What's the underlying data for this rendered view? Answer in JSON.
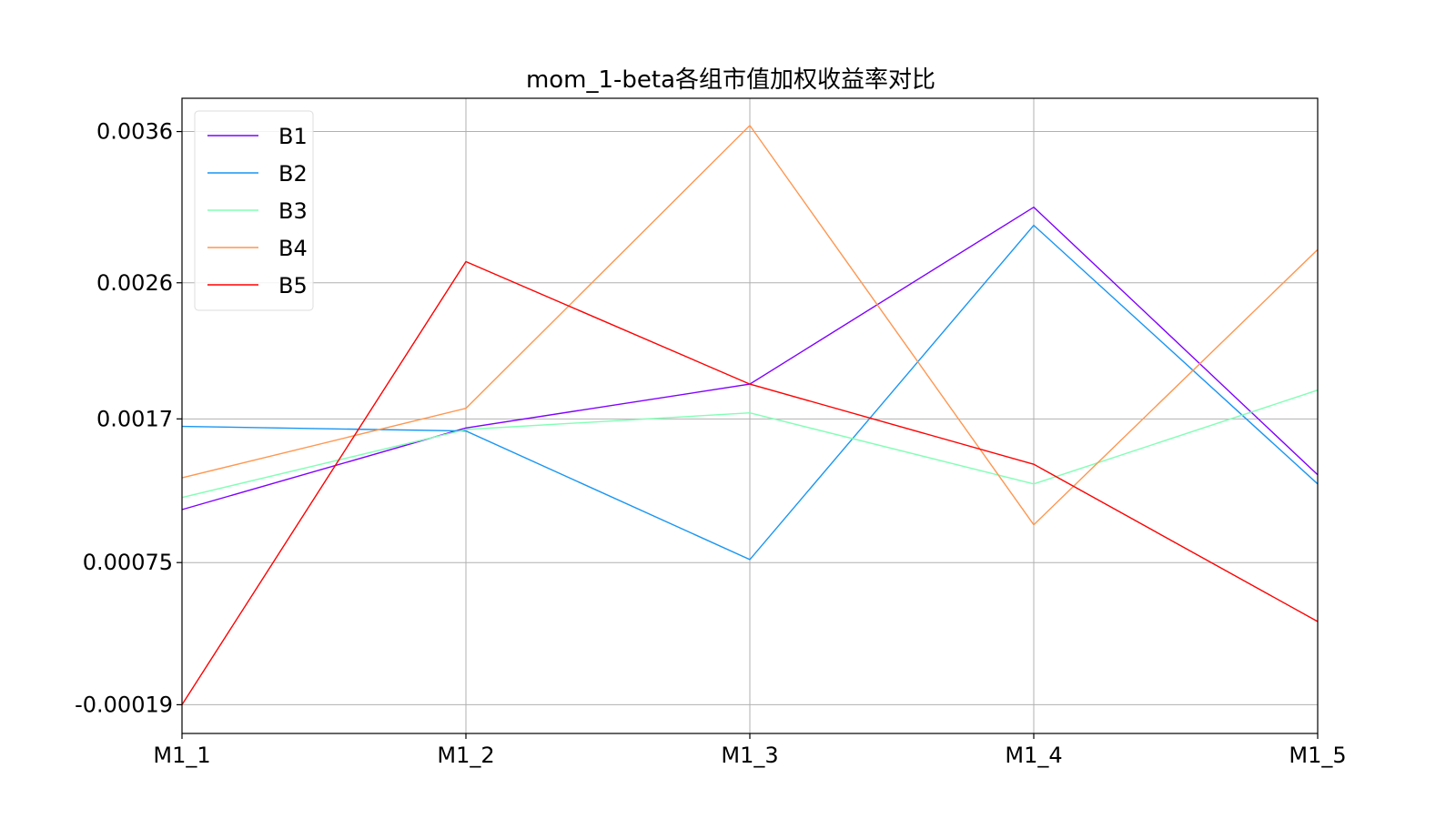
{
  "chart_data": {
    "type": "line",
    "title": "mom_1-beta各组市值加权收益率对比",
    "xlabel": "",
    "ylabel": "",
    "categories": [
      "M1_1",
      "M1_2",
      "M1_3",
      "M1_4",
      "M1_5"
    ],
    "yticks": [
      -0.00019,
      0.00075,
      0.0017,
      0.0026,
      0.0036
    ],
    "ytick_labels": [
      "-0.00019",
      "0.00075",
      "0.0017",
      "0.0026",
      "0.0036"
    ],
    "ylim": [
      -0.00038,
      0.00382
    ],
    "grid": true,
    "legend_position": "upper-left",
    "series": [
      {
        "name": "B1",
        "color": "#8000ff",
        "values": [
          0.0011,
          0.00164,
          0.00193,
          0.0031,
          0.00133
        ]
      },
      {
        "name": "B2",
        "color": "#1996f3",
        "values": [
          0.00165,
          0.00162,
          0.00077,
          0.00298,
          0.00127
        ]
      },
      {
        "name": "B3",
        "color": "#80ffb4",
        "values": [
          0.00118,
          0.00163,
          0.00174,
          0.00127,
          0.00189
        ]
      },
      {
        "name": "B4",
        "color": "#ff964f",
        "values": [
          0.00131,
          0.00177,
          0.00364,
          0.001,
          0.00282
        ]
      },
      {
        "name": "B5",
        "color": "#ff0000",
        "values": [
          -0.00019,
          0.00274,
          0.00193,
          0.0014,
          0.00036
        ]
      }
    ]
  }
}
